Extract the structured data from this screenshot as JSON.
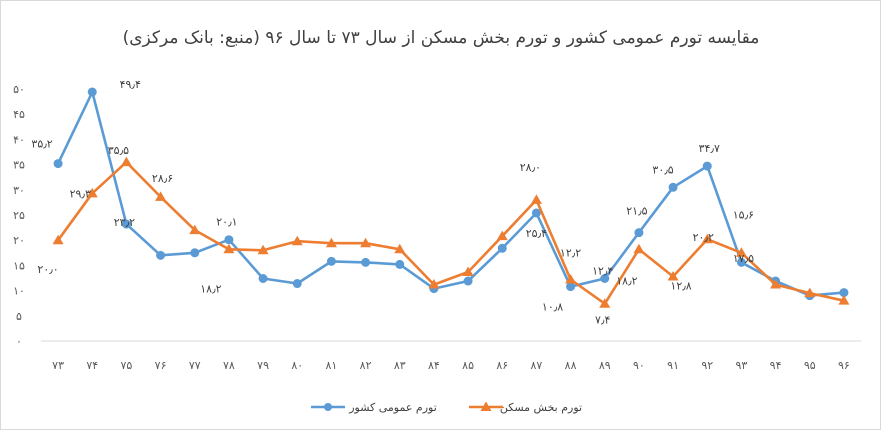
{
  "chart_data": {
    "type": "line",
    "title": "مقایسه تورم عمومی کشور و تورم بخش مسکن از سال ۷۳ تا سال ۹۶ (منبع: بانک مرکزی)",
    "categories": [
      "۷۳",
      "۷۴",
      "۷۵",
      "۷۶",
      "۷۷",
      "۷۸",
      "۷۹",
      "۸۰",
      "۸۱",
      "۸۲",
      "۸۳",
      "۸۴",
      "۸۵",
      "۸۶",
      "۸۷",
      "۸۸",
      "۸۹",
      "۹۰",
      "۹۱",
      "۹۲",
      "۹۳",
      "۹۴",
      "۹۵",
      "۹۶"
    ],
    "ylim": [
      0,
      50
    ],
    "y_ticks": [
      0,
      5,
      10,
      15,
      20,
      25,
      30,
      35,
      40,
      45,
      50
    ],
    "y_tick_labels": [
      "۰",
      "۵",
      "۱۰",
      "۱۵",
      "۲۰",
      "۲۵",
      "۳۰",
      "۳۵",
      "۴۰",
      "۴۵",
      "۵۰"
    ],
    "grid": false,
    "legend_position": "bottom",
    "series": [
      {
        "name": "تورم عمومی کشور",
        "color": "#5b9bd5",
        "marker": "circle",
        "values": [
          35.2,
          49.4,
          23.2,
          17.0,
          17.5,
          20.1,
          12.4,
          11.4,
          15.8,
          15.6,
          15.2,
          10.4,
          11.9,
          18.4,
          25.4,
          10.8,
          12.4,
          21.5,
          30.5,
          34.7,
          15.6,
          11.9,
          9.0,
          9.6
        ],
        "labels": [
          {
            "index": 0,
            "text": "۳۵٫۲"
          },
          {
            "index": 1,
            "text": "۴۹٫۴"
          },
          {
            "index": 2,
            "text": "۲۳٫۲"
          },
          {
            "index": 5,
            "text": "۲۰٫۱"
          },
          {
            "index": 14,
            "text": "۲۵٫۴"
          },
          {
            "index": 15,
            "text": "۱۰٫۸"
          },
          {
            "index": 16,
            "text": "۱۲٫۴"
          },
          {
            "index": 17,
            "text": "۲۱٫۵"
          },
          {
            "index": 18,
            "text": "۳۰٫۵"
          },
          {
            "index": 19,
            "text": "۳۴٫۷"
          },
          {
            "index": 20,
            "text": "۱۵٫۶"
          }
        ]
      },
      {
        "name": "تورم بخش مسکن",
        "color": "#ed7d31",
        "marker": "triangle",
        "values": [
          20.0,
          29.3,
          35.5,
          28.6,
          22.0,
          18.2,
          18.0,
          19.8,
          19.4,
          19.4,
          18.2,
          11.2,
          13.7,
          20.8,
          28.0,
          12.2,
          7.4,
          18.2,
          12.8,
          20.2,
          17.5,
          11.2,
          9.5,
          8.0
        ],
        "labels": [
          {
            "index": 0,
            "text": "۲۰٫۰"
          },
          {
            "index": 1,
            "text": "۲۹٫۳"
          },
          {
            "index": 2,
            "text": "۳۵٫۵"
          },
          {
            "index": 3,
            "text": "۲۸٫۶"
          },
          {
            "index": 5,
            "text": "۱۸٫۲"
          },
          {
            "index": 14,
            "text": "۲۸٫۰"
          },
          {
            "index": 15,
            "text": "۱۲٫۲"
          },
          {
            "index": 16,
            "text": "۷٫۴"
          },
          {
            "index": 17,
            "text": "۱۸٫۲"
          },
          {
            "index": 18,
            "text": "۱۲٫۸"
          },
          {
            "index": 19,
            "text": "۲۰٫۲"
          },
          {
            "index": 20,
            "text": "۱۷٫۵"
          }
        ]
      }
    ]
  }
}
